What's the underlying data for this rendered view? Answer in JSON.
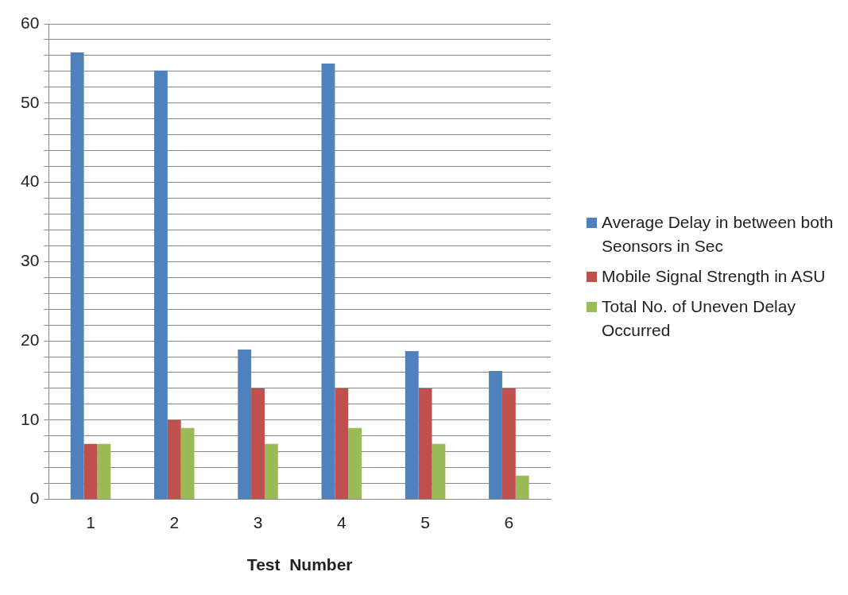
{
  "chart_data": {
    "type": "bar",
    "xlabel": "Test  Number",
    "categories": [
      "1",
      "2",
      "3",
      "4",
      "5",
      "6"
    ],
    "series": [
      {
        "name": "Average Delay in between both Seonsors in Sec",
        "color": "#4f81bd",
        "values": [
          56.4,
          54.1,
          18.9,
          55.0,
          18.7,
          16.2
        ]
      },
      {
        "name": "Mobile Signal Strength in ASU",
        "color": "#c0504d",
        "values": [
          7,
          10,
          14,
          14,
          14,
          14
        ]
      },
      {
        "name": "Total No. of Uneven Delay Occurred",
        "color": "#9bbb59",
        "values": [
          7,
          9,
          7,
          9,
          7,
          3
        ]
      }
    ],
    "ylim": [
      0,
      60
    ],
    "yticks": [
      0,
      {
        "value": 2,
        "label": null
      },
      {
        "value": 4,
        "label": null
      },
      {
        "value": 6,
        "label": null
      },
      {
        "value": 8,
        "label": null
      },
      10,
      {
        "value": 12,
        "label": null
      },
      {
        "value": 14,
        "label": null
      },
      {
        "value": 16,
        "label": null
      },
      {
        "value": 18,
        "label": null
      },
      20,
      {
        "value": 22,
        "label": null
      },
      {
        "value": 24,
        "label": null
      },
      {
        "value": 26,
        "label": null
      },
      {
        "value": 28,
        "label": null
      },
      30,
      {
        "value": 32,
        "label": null
      },
      {
        "value": 34,
        "label": null
      },
      {
        "value": 36,
        "label": null
      },
      {
        "value": 38,
        "label": null
      },
      40,
      {
        "value": 42,
        "label": null
      },
      {
        "value": 44,
        "label": null
      },
      {
        "value": 46,
        "label": null
      },
      {
        "value": 48,
        "label": null
      },
      50,
      {
        "value": 52,
        "label": null
      },
      {
        "value": 54,
        "label": null
      },
      {
        "value": 56,
        "label": null
      },
      {
        "value": 58,
        "label": null
      },
      60
    ],
    "grid": "y",
    "legend": "right"
  }
}
